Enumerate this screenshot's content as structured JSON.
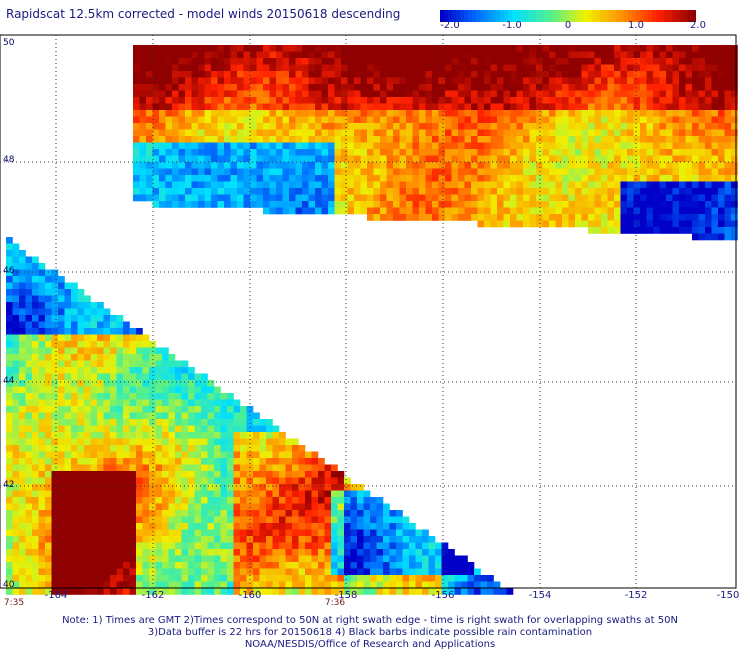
{
  "title": "Rapidscat 12.5km corrected - model winds 20150618 descending",
  "colorbar": {
    "labels": [
      "-2.0",
      "-1.0",
      "0",
      "1.0",
      "2.0"
    ],
    "range": [
      -2.0,
      2.0
    ],
    "colors": [
      "#0000c8",
      "#0070ff",
      "#00e0ff",
      "#50f090",
      "#f0f000",
      "#ff9000",
      "#ff2000",
      "#900000"
    ]
  },
  "lat_labels": [
    "50",
    "48",
    "46",
    "44",
    "42",
    "40"
  ],
  "lon_labels": [
    "-164",
    "-162",
    "-160",
    "-158",
    "-156",
    "-154",
    "-152",
    "-150"
  ],
  "time_labels": [
    "7:35",
    "7:36"
  ],
  "notes": [
    "Note: 1) Times are GMT 2)Times correspond to 50N at right swath edge - time is right swath for overlapping swaths at 50N",
    "3)Data buffer is 22 hrs for 20150618 4) Black barbs indicate possible rain contamination",
    "NOAA/NESDIS/Office of Research and Applications"
  ]
}
